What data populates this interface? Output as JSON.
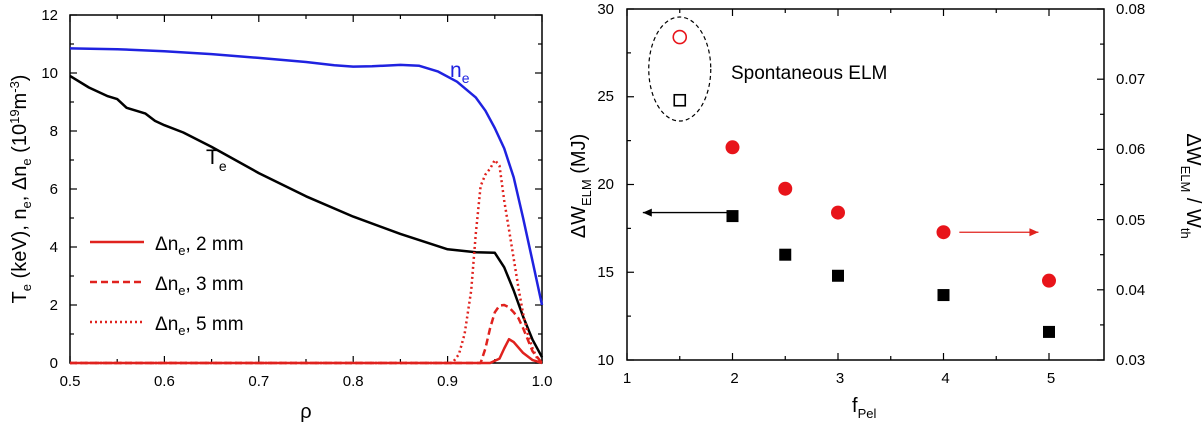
{
  "chart_data": [
    {
      "type": "line",
      "xlabel": "ρ",
      "ylabel": "T_e (keV),   n_e, Δn_e (10^19 m^-3)",
      "xlim": [
        0.5,
        1.0
      ],
      "ylim": [
        0,
        12
      ],
      "xticks": [
        "0.5",
        "0.6",
        "0.7",
        "0.8",
        "0.9",
        "1.0"
      ],
      "yticks": [
        "0",
        "2",
        "4",
        "6",
        "8",
        "10",
        "12"
      ],
      "legend_position": "bottom-left",
      "labels": {
        "ne_main": "n",
        "ne_sub": "e",
        "te_main": "T",
        "te_sub": "e"
      },
      "series": [
        {
          "key": "ne",
          "color": "#1f22e0",
          "style": "solid",
          "x": [
            0.5,
            0.55,
            0.6,
            0.65,
            0.7,
            0.75,
            0.78,
            0.8,
            0.82,
            0.85,
            0.87,
            0.89,
            0.91,
            0.93,
            0.94,
            0.95,
            0.96,
            0.97,
            0.98,
            0.99,
            1.0
          ],
          "y": [
            10.85,
            10.82,
            10.75,
            10.65,
            10.52,
            10.38,
            10.27,
            10.22,
            10.23,
            10.28,
            10.25,
            10.05,
            9.7,
            9.15,
            8.7,
            8.1,
            7.4,
            6.4,
            5.0,
            3.5,
            2.0
          ]
        },
        {
          "key": "te",
          "color": "#000000",
          "style": "solid",
          "x": [
            0.5,
            0.52,
            0.54,
            0.55,
            0.56,
            0.57,
            0.58,
            0.59,
            0.6,
            0.62,
            0.65,
            0.7,
            0.75,
            0.8,
            0.85,
            0.9,
            0.93,
            0.95,
            0.96,
            0.97,
            0.98,
            0.99,
            1.0
          ],
          "y": [
            9.9,
            9.5,
            9.2,
            9.1,
            8.8,
            8.7,
            8.6,
            8.35,
            8.2,
            7.95,
            7.45,
            6.55,
            5.75,
            5.05,
            4.45,
            3.92,
            3.82,
            3.8,
            3.3,
            2.5,
            1.6,
            0.8,
            0.2
          ]
        },
        {
          "key": "dn2",
          "name": "Δn_e, 2 mm",
          "color": "#e0221e",
          "style": "solid",
          "x": [
            0.5,
            0.9,
            0.945,
            0.955,
            0.96,
            0.965,
            0.97,
            0.98,
            0.99,
            1.0
          ],
          "y": [
            0,
            0,
            0,
            0.15,
            0.5,
            0.82,
            0.72,
            0.35,
            0.1,
            0
          ]
        },
        {
          "key": "dn3",
          "name": "Δn_e, 3 mm",
          "color": "#e0221e",
          "style": "dashed",
          "x": [
            0.5,
            0.92,
            0.935,
            0.94,
            0.945,
            0.95,
            0.955,
            0.96,
            0.965,
            0.97,
            0.975,
            0.98,
            0.99,
            1.0
          ],
          "y": [
            0,
            0,
            0,
            0.5,
            1.2,
            1.75,
            1.98,
            2.0,
            1.92,
            1.75,
            1.55,
            1.2,
            0.4,
            0
          ]
        },
        {
          "key": "dn5",
          "name": "Δn_e, 5 mm",
          "color": "#e0221e",
          "style": "dotted",
          "x": [
            0.5,
            0.905,
            0.912,
            0.918,
            0.925,
            0.93,
            0.935,
            0.94,
            0.945,
            0.95,
            0.955,
            0.96,
            0.965,
            0.97,
            0.975,
            0.98,
            0.985,
            0.99,
            0.995,
            1.0
          ],
          "y": [
            0,
            0,
            0.3,
            1.0,
            2.5,
            4.5,
            6.1,
            6.5,
            6.7,
            7.0,
            6.8,
            5.6,
            4.6,
            3.6,
            2.6,
            1.7,
            1.0,
            0.5,
            0.15,
            0
          ]
        }
      ]
    },
    {
      "type": "scatter",
      "xlabel": "f_Pel",
      "ylabel": "ΔW_ELM (MJ)",
      "y2label": "ΔW_ELM / W_th",
      "xlim": [
        1,
        6
      ],
      "ylim": [
        10,
        30
      ],
      "y2lim": [
        0.03,
        0.08
      ],
      "xticks": [
        "1",
        "2",
        "3",
        "4",
        "5"
      ],
      "yticks": [
        "10",
        "15",
        "20",
        "25",
        "30"
      ],
      "y2ticks": [
        "0.03",
        "0.04",
        "0.05",
        "0.06",
        "0.07",
        "0.08"
      ],
      "annotation": "Spontaneous ELM",
      "series": [
        {
          "key": "dw",
          "axis": "left",
          "marker": "square",
          "color": "#000000",
          "x": [
            2,
            2.5,
            3,
            4,
            5
          ],
          "y": [
            18.2,
            16.0,
            14.8,
            13.7,
            11.6
          ]
        },
        {
          "key": "ratio",
          "axis": "right",
          "marker": "circle",
          "color": "#e8141a",
          "x": [
            2,
            2.5,
            3,
            4,
            5
          ],
          "y": [
            0.0603,
            0.0544,
            0.051,
            0.0482,
            0.0413
          ]
        },
        {
          "key": "spont_dw",
          "axis": "left",
          "marker": "open-square",
          "color": "#000000",
          "x": [
            1.5
          ],
          "y": [
            24.8
          ]
        },
        {
          "key": "spont_ratio",
          "axis": "right",
          "marker": "open-circle",
          "color": "#e8141a",
          "x": [
            1.5
          ],
          "y": [
            0.076
          ]
        }
      ],
      "arrows": [
        {
          "axis": "left",
          "from_x": 2,
          "to_x": 1.15,
          "y": 18.4,
          "color": "#000000"
        },
        {
          "axis": "right",
          "from_x": 4.15,
          "to_x": 4.9,
          "y": 0.0482,
          "color": "#e0221e"
        }
      ]
    }
  ]
}
